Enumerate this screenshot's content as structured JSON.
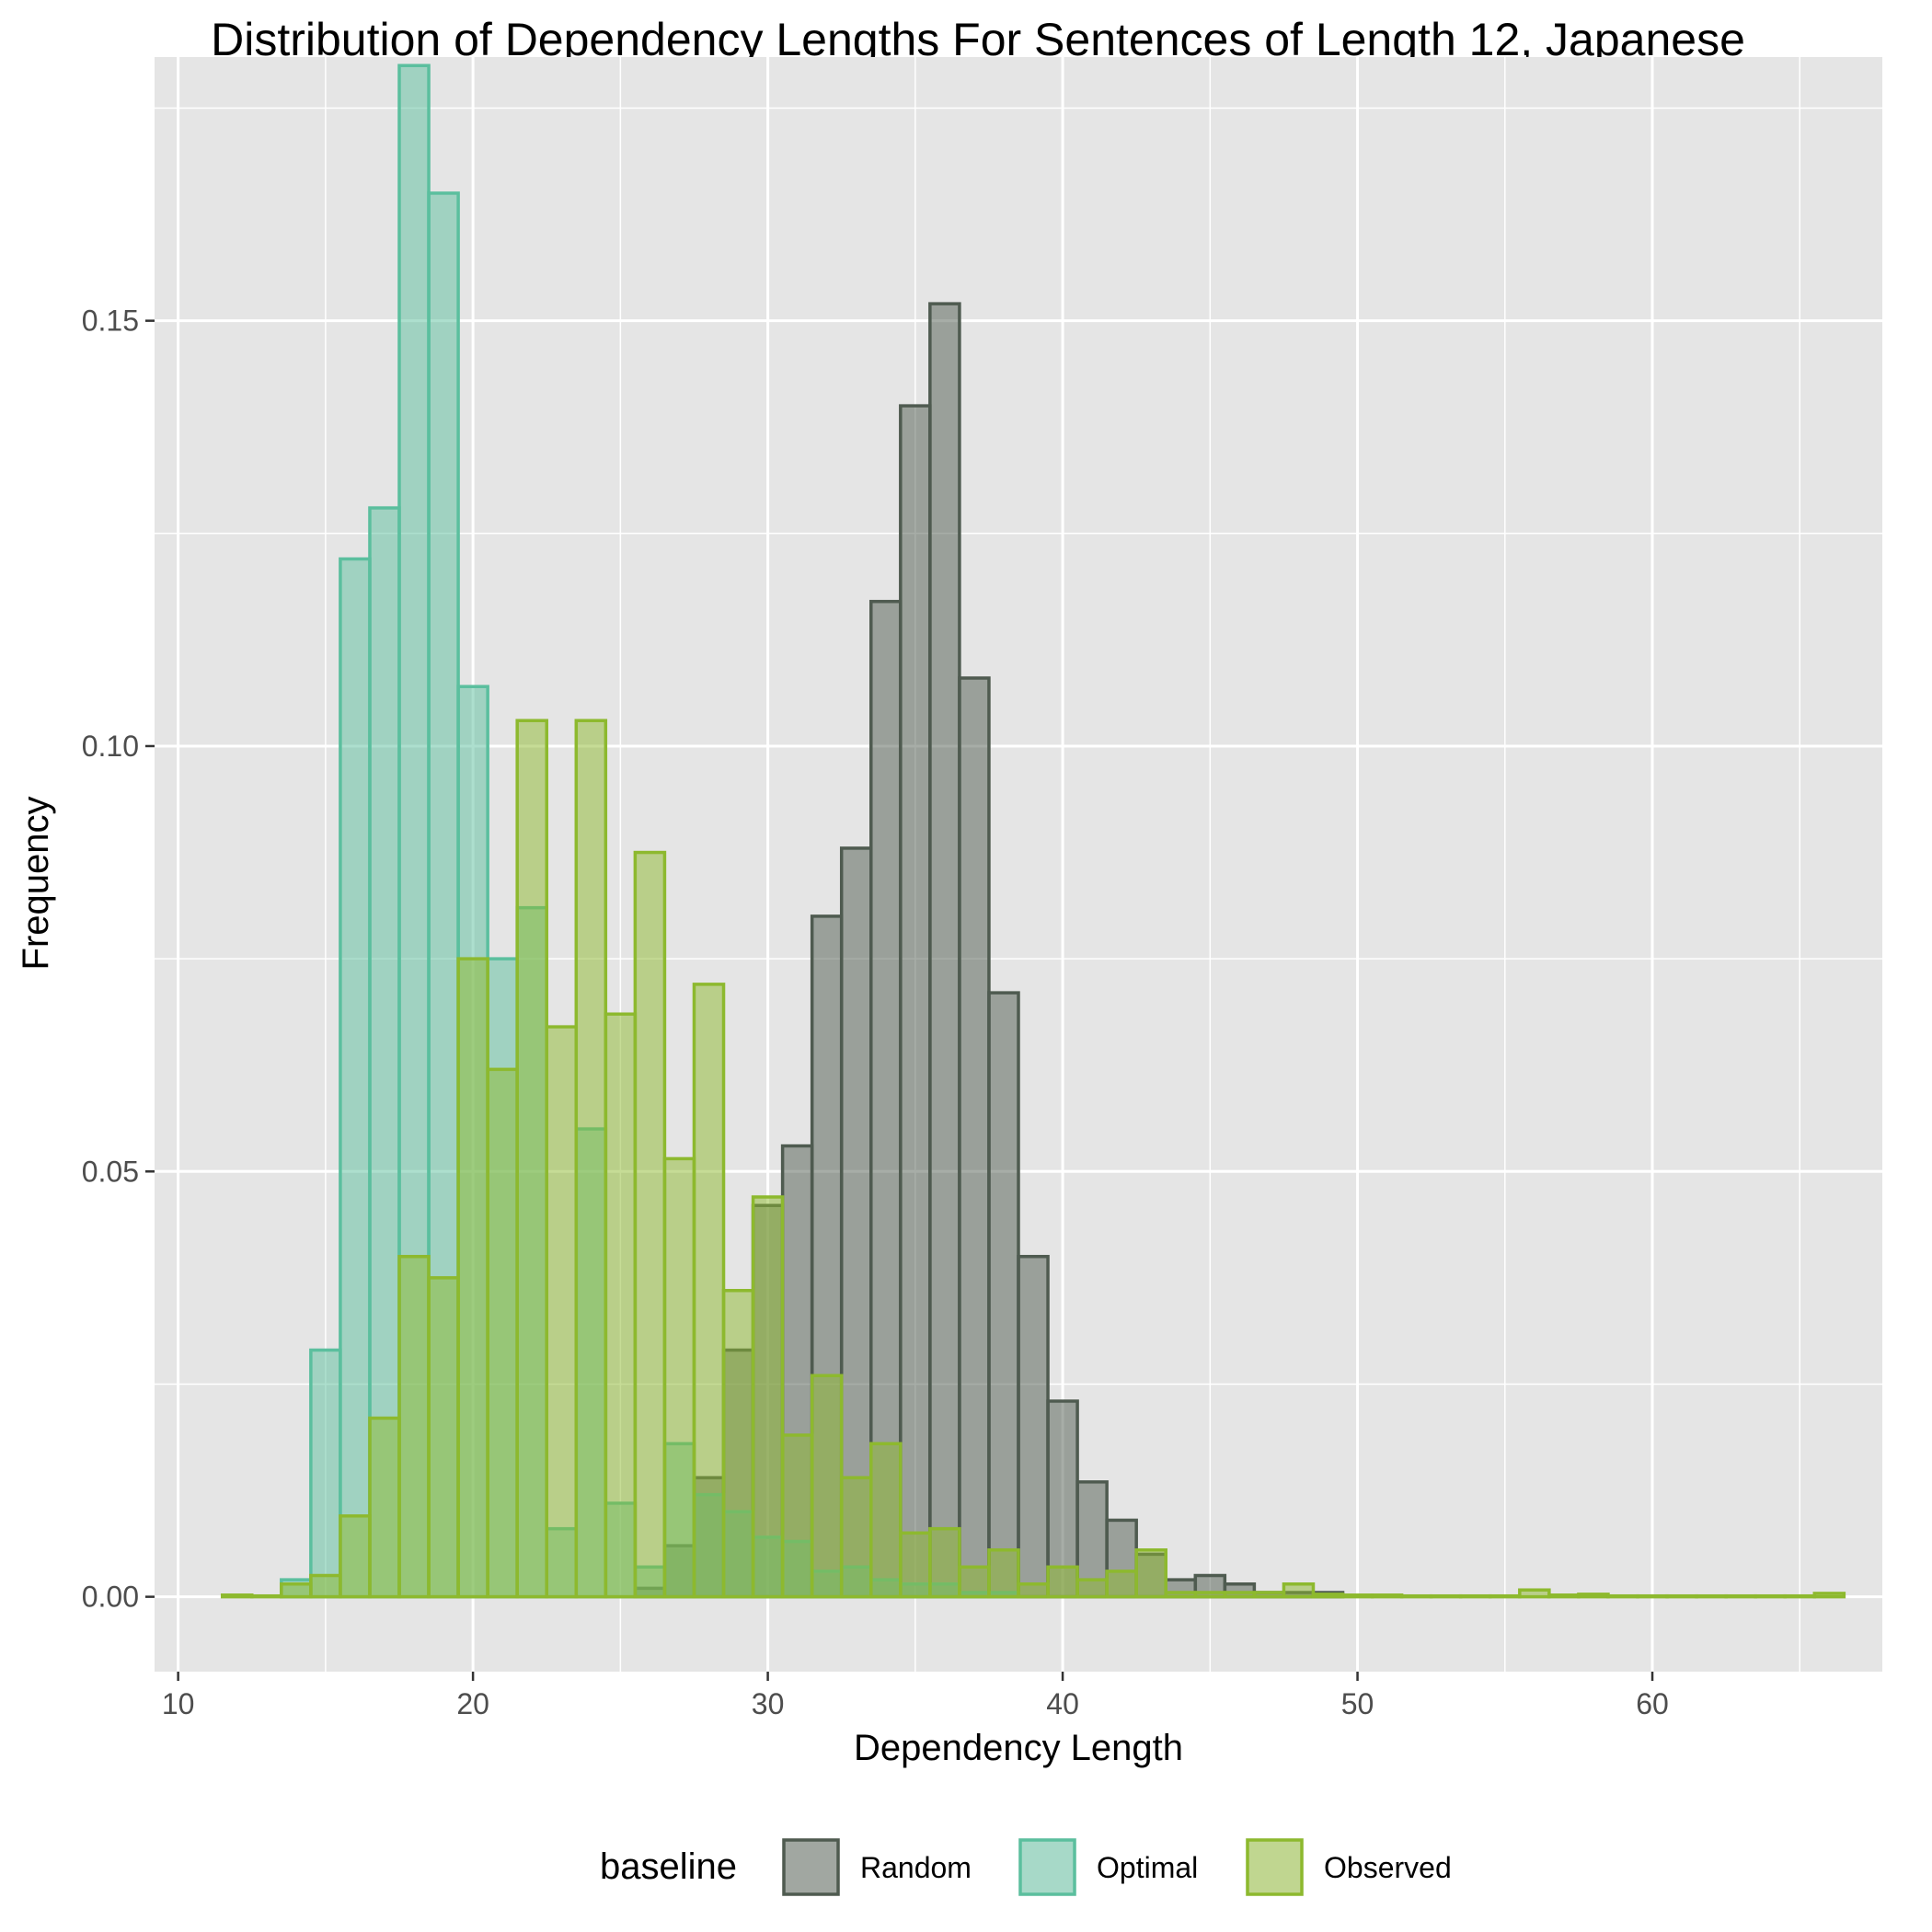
{
  "chart_data": {
    "type": "histogram",
    "title": "Distribution of Dependency Lengths For Sentences of Length 12, Japanese",
    "xlabel": "Dependency Length",
    "ylabel": "Frequency",
    "xlim": [
      9.2,
      67.8
    ],
    "ylim": [
      -0.0088,
      0.181
    ],
    "x_ticks": [
      10,
      20,
      30,
      40,
      50,
      60
    ],
    "x_tick_labels": [
      "10",
      "20",
      "30",
      "40",
      "50",
      "60"
    ],
    "y_ticks": [
      0.0,
      0.05,
      0.1,
      0.15
    ],
    "y_tick_labels": [
      "0.00",
      "0.05",
      "0.10",
      "0.15"
    ],
    "grid": true,
    "legend": {
      "title": "baseline",
      "position": "bottom"
    },
    "bin_start": 11.5,
    "bin_width": 1.0,
    "bins": 55,
    "series": [
      {
        "name": "Random",
        "fill": "#4f5b50",
        "stroke": "#4f5b50",
        "values": [
          0,
          0,
          0,
          0,
          0,
          0,
          0,
          0,
          0,
          0,
          0,
          0,
          0,
          0,
          0.001,
          0.006,
          0.014,
          0.029,
          0.046,
          0.053,
          0.08,
          0.088,
          0.117,
          0.14,
          0.152,
          0.108,
          0.071,
          0.04,
          0.023,
          0.0135,
          0.009,
          0.005,
          0.002,
          0.0025,
          0.0015,
          0.0005,
          0.0005,
          0.0005,
          0,
          0,
          0,
          0,
          0,
          0,
          0,
          0,
          0,
          0,
          0,
          0,
          0,
          0,
          0,
          0,
          0
        ]
      },
      {
        "name": "Optimal",
        "fill": "#5bbf9e",
        "stroke": "#5bbf9e",
        "values": [
          0,
          0,
          0.002,
          0.029,
          0.122,
          0.128,
          0.18,
          0.165,
          0.107,
          0.075,
          0.081,
          0.008,
          0.055,
          0.011,
          0.0035,
          0.018,
          0.012,
          0.01,
          0.007,
          0.0065,
          0.003,
          0.0035,
          0.002,
          0.0015,
          0.0015,
          0.0005,
          0.0005,
          0,
          0,
          0,
          0,
          0,
          0,
          0,
          0,
          0,
          0,
          0,
          0,
          0,
          0,
          0,
          0,
          0,
          0,
          0,
          0,
          0,
          0,
          0,
          0,
          0,
          0,
          0,
          0
        ]
      },
      {
        "name": "Observed",
        "fill": "#8db92e",
        "stroke": "#8db92e",
        "values": [
          0.0002,
          0.0001,
          0.0015,
          0.0025,
          0.0095,
          0.021,
          0.04,
          0.0375,
          0.075,
          0.062,
          0.103,
          0.067,
          0.103,
          0.0685,
          0.0875,
          0.0515,
          0.072,
          0.036,
          0.047,
          0.019,
          0.026,
          0.014,
          0.018,
          0.0075,
          0.008,
          0.0035,
          0.0055,
          0.0015,
          0.0035,
          0.002,
          0.003,
          0.0055,
          0.0005,
          0.0005,
          0.0005,
          0.0005,
          0.0015,
          0.0003,
          0.0002,
          0.0002,
          0.0001,
          0.0001,
          0.0001,
          0.0001,
          0.0008,
          0.0002,
          0.0003,
          0.0001,
          0.0001,
          0.0001,
          0.0001,
          0.0001,
          0.0001,
          0.0001,
          0.0004
        ]
      }
    ]
  }
}
